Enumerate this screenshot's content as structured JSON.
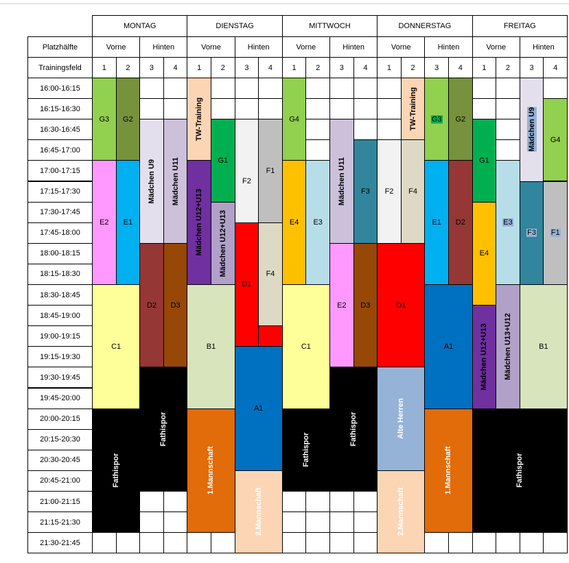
{
  "days": [
    "MONTAG",
    "DIENSTAG",
    "MITTWOCH",
    "DONNERSTAG",
    "FREITAG"
  ],
  "row_labels": {
    "half": "Platzhälfte",
    "field": "Trainingsfeld"
  },
  "halves": [
    "Vorne",
    "Hinten"
  ],
  "fields": [
    "1",
    "2",
    "3",
    "4"
  ],
  "times": [
    "16:00-16:15",
    "16:15-16:30",
    "16:30-16:45",
    "16:45-17:00",
    "17:00-17:15",
    "17:15-17:30",
    "17:30-17:45",
    "17:45-18:00",
    "18:00-18:15",
    "18:15-18:30",
    "18:30-18:45",
    "18:45-19:00",
    "19:00-19:15",
    "19:15-19:30",
    "19:30-19:45",
    "19:45-20:00",
    "20:00-20:15",
    "20:15-20:30",
    "20:30-20:45",
    "20:45-21:00",
    "21:00-21:15",
    "21:15-21:30",
    "21:30-21:45"
  ],
  "colors": {
    "g_light": "#92d050",
    "g_dark": "#76923c",
    "g_bright": "#00b050",
    "pink": "#ff99ff",
    "blue": "#00b0f0",
    "lavender": "#e4dfec",
    "lilac": "#ccc0da",
    "purple": "#7030a0",
    "purple_light": "#b1a0c7",
    "brown_red": "#953735",
    "brown": "#974706",
    "yellow_light": "#ffff99",
    "black": "#000000",
    "peach": "#fcd5b4",
    "green_pale": "#d8e4bc",
    "orange": "#e26b0a",
    "light_grey": "#f2f2f2",
    "grey": "#bfbfbf",
    "red": "#ff0000",
    "tan": "#ddd9c4",
    "amber": "#ffc000",
    "pale_blue": "#b7dee8",
    "teal": "#31859c",
    "dark_blue": "#0070c0",
    "steel_blue": "#95b3d7"
  },
  "blocks": [
    {
      "day": 0,
      "col": 0,
      "row": 0,
      "span": 4,
      "label": "G3",
      "color": "g_light"
    },
    {
      "day": 0,
      "col": 1,
      "row": 0,
      "span": 4,
      "label": "G2",
      "color": "g_dark"
    },
    {
      "day": 0,
      "col": 2,
      "row": 2,
      "span": 6,
      "label": "Mädchen U9",
      "color": "lavender",
      "vertical": true,
      "bold": true
    },
    {
      "day": 0,
      "col": 3,
      "row": 2,
      "span": 6,
      "label": "Mädchen U11",
      "color": "lilac",
      "vertical": true,
      "bold": true
    },
    {
      "day": 0,
      "col": 0,
      "row": 4,
      "span": 6,
      "label": "E2",
      "color": "pink"
    },
    {
      "day": 0,
      "col": 1,
      "row": 4,
      "span": 6,
      "label": "E1",
      "color": "blue"
    },
    {
      "day": 0,
      "col": 2,
      "row": 8,
      "span": 6,
      "label": "D2",
      "color": "brown_red"
    },
    {
      "day": 0,
      "col": 3,
      "row": 8,
      "span": 6,
      "label": "D3",
      "color": "brown"
    },
    {
      "day": 0,
      "col": 0,
      "row": 10,
      "span": 6,
      "width": 2,
      "label": "C1",
      "color": "yellow_light"
    },
    {
      "day": 0,
      "col": 2,
      "row": 14,
      "span": 6,
      "width": 2,
      "label": "Fathispor",
      "color": "black",
      "vertical": true,
      "white": true
    },
    {
      "day": 0,
      "col": 0,
      "row": 16,
      "span": 6,
      "width": 2,
      "label": "Fathispor",
      "color": "black",
      "vertical": true,
      "white": true
    },
    {
      "day": 1,
      "col": 0,
      "row": 0,
      "span": 4,
      "label": "TW-Training",
      "color": "peach",
      "vertical": true,
      "bold": true
    },
    {
      "day": 1,
      "col": 1,
      "row": 2,
      "span": 4,
      "label": "G1",
      "color": "g_bright"
    },
    {
      "day": 1,
      "col": 2,
      "row": 2,
      "span": 6,
      "label": "F2",
      "color": "light_grey"
    },
    {
      "day": 1,
      "col": 3,
      "row": 2,
      "span": 5,
      "label": "F1",
      "color": "grey"
    },
    {
      "day": 1,
      "col": 0,
      "row": 4,
      "span": 6,
      "label": "Mädchen U12+U13",
      "color": "purple",
      "vertical": true,
      "bold": true
    },
    {
      "day": 1,
      "col": 1,
      "row": 6,
      "span": 4,
      "label": "Mädchen U12+U13",
      "color": "purple_light",
      "vertical": true,
      "bold": true
    },
    {
      "day": 1,
      "col": 2,
      "row": 7,
      "span": 6,
      "label": "D1",
      "color": "red"
    },
    {
      "day": 1,
      "col": 3,
      "row": 7,
      "span": 5,
      "label": "F4",
      "color": "tan"
    },
    {
      "day": 1,
      "col": 3,
      "row": 12,
      "span": 1,
      "label": "",
      "color": "red"
    },
    {
      "day": 1,
      "col": 0,
      "row": 10,
      "span": 6,
      "width": 2,
      "label": "B1",
      "color": "green_pale"
    },
    {
      "day": 1,
      "col": 2,
      "row": 13,
      "span": 6,
      "width": 2,
      "label": "A1",
      "color": "dark_blue"
    },
    {
      "day": 1,
      "col": 0,
      "row": 16,
      "span": 6,
      "width": 2,
      "label": "1.Mannschaft",
      "color": "orange",
      "vertical": true,
      "white": true
    },
    {
      "day": 1,
      "col": 2,
      "row": 19,
      "span": 4,
      "width": 2,
      "label": "2.Mannschaft",
      "color": "peach",
      "vertical": true,
      "white": true
    },
    {
      "day": 2,
      "col": 0,
      "row": 0,
      "span": 4,
      "label": "G4",
      "color": "g_light"
    },
    {
      "day": 2,
      "col": 2,
      "row": 2,
      "span": 6,
      "label": "Mädchen U11",
      "color": "lilac",
      "vertical": true,
      "bold": true
    },
    {
      "day": 2,
      "col": 3,
      "row": 3,
      "span": 5,
      "label": "F3",
      "color": "teal"
    },
    {
      "day": 2,
      "col": 0,
      "row": 4,
      "span": 6,
      "label": "E4",
      "color": "amber"
    },
    {
      "day": 2,
      "col": 1,
      "row": 4,
      "span": 6,
      "label": "E3",
      "color": "pale_blue"
    },
    {
      "day": 2,
      "col": 2,
      "row": 8,
      "span": 6,
      "label": "E2",
      "color": "pink"
    },
    {
      "day": 2,
      "col": 3,
      "row": 8,
      "span": 6,
      "label": "D3",
      "color": "brown"
    },
    {
      "day": 2,
      "col": 0,
      "row": 10,
      "span": 6,
      "width": 2,
      "label": "C1",
      "color": "yellow_light"
    },
    {
      "day": 2,
      "col": 2,
      "row": 14,
      "span": 6,
      "width": 2,
      "label": "Fathispor",
      "color": "black",
      "vertical": true,
      "white": true
    },
    {
      "day": 2,
      "col": 0,
      "row": 16,
      "span": 4,
      "width": 2,
      "label": "Fathispor",
      "color": "black",
      "vertical": true,
      "white": true
    },
    {
      "day": 3,
      "col": 1,
      "row": 0,
      "span": 3,
      "label": "TW-Training",
      "color": "peach",
      "vertical": true,
      "bold": true
    },
    {
      "day": 3,
      "col": 2,
      "row": 0,
      "span": 4,
      "label": "G3",
      "color": "g_light",
      "hl": "g_bright"
    },
    {
      "day": 3,
      "col": 3,
      "row": 0,
      "span": 4,
      "label": "G2",
      "color": "g_dark"
    },
    {
      "day": 3,
      "col": 0,
      "row": 3,
      "span": 5,
      "label": "F2",
      "color": "light_grey"
    },
    {
      "day": 3,
      "col": 1,
      "row": 3,
      "span": 5,
      "label": "F4",
      "color": "tan"
    },
    {
      "day": 3,
      "col": 2,
      "row": 4,
      "span": 6,
      "label": "E1",
      "color": "blue"
    },
    {
      "day": 3,
      "col": 3,
      "row": 4,
      "span": 6,
      "label": "D2",
      "color": "brown_red",
      "hl": "brown_red"
    },
    {
      "day": 3,
      "col": 0,
      "row": 8,
      "span": 6,
      "width": 2,
      "label": "D1",
      "color": "red"
    },
    {
      "day": 3,
      "col": 2,
      "row": 10,
      "span": 6,
      "width": 2,
      "label": "A1",
      "color": "dark_blue"
    },
    {
      "day": 3,
      "col": 0,
      "row": 14,
      "span": 5,
      "width": 2,
      "label": "Alte Herren",
      "color": "steel_blue",
      "vertical": true,
      "white": true
    },
    {
      "day": 3,
      "col": 0,
      "row": 19,
      "span": 4,
      "width": 2,
      "label": "2.Mannschaft",
      "color": "peach",
      "vertical": true,
      "white": true
    },
    {
      "day": 3,
      "col": 2,
      "row": 16,
      "span": 6,
      "width": 2,
      "label": "1.Mannschaft",
      "color": "orange",
      "vertical": true,
      "white": true
    },
    {
      "day": 4,
      "col": 2,
      "row": 0,
      "span": 5,
      "label": "Mädchen U9",
      "color": "lavender",
      "vertical": true,
      "bold": true,
      "hl": "steel_blue"
    },
    {
      "day": 4,
      "col": 3,
      "row": 1,
      "span": 4,
      "label": "G4",
      "color": "g_light"
    },
    {
      "day": 4,
      "col": 0,
      "row": 2,
      "span": 4,
      "label": "G1",
      "color": "g_bright",
      "hl": "g_bright"
    },
    {
      "day": 4,
      "col": 1,
      "row": 4,
      "span": 6,
      "label": "E3",
      "color": "pale_blue",
      "hl": "steel_blue"
    },
    {
      "day": 4,
      "col": 2,
      "row": 5,
      "span": 5,
      "label": "F3",
      "color": "teal",
      "hl": "steel_blue"
    },
    {
      "day": 4,
      "col": 3,
      "row": 5,
      "span": 5,
      "label": "F1",
      "color": "grey",
      "hl": "steel_blue"
    },
    {
      "day": 4,
      "col": 0,
      "row": 6,
      "span": 5,
      "label": "E4",
      "color": "amber"
    },
    {
      "day": 4,
      "col": 0,
      "row": 11,
      "span": 5,
      "label": "Mädchen U12+U13",
      "color": "purple",
      "vertical": true,
      "bold": true
    },
    {
      "day": 4,
      "col": 1,
      "row": 10,
      "span": 6,
      "label": "Mädchen U13+U12",
      "color": "purple_light",
      "vertical": true,
      "bold": true
    },
    {
      "day": 4,
      "col": 2,
      "row": 10,
      "span": 6,
      "width": 2,
      "label": "B1",
      "color": "green_pale"
    },
    {
      "day": 4,
      "col": 0,
      "row": 16,
      "span": 6,
      "width": 4,
      "label": "Fathispor",
      "color": "black",
      "vertical": true,
      "white": true
    }
  ]
}
